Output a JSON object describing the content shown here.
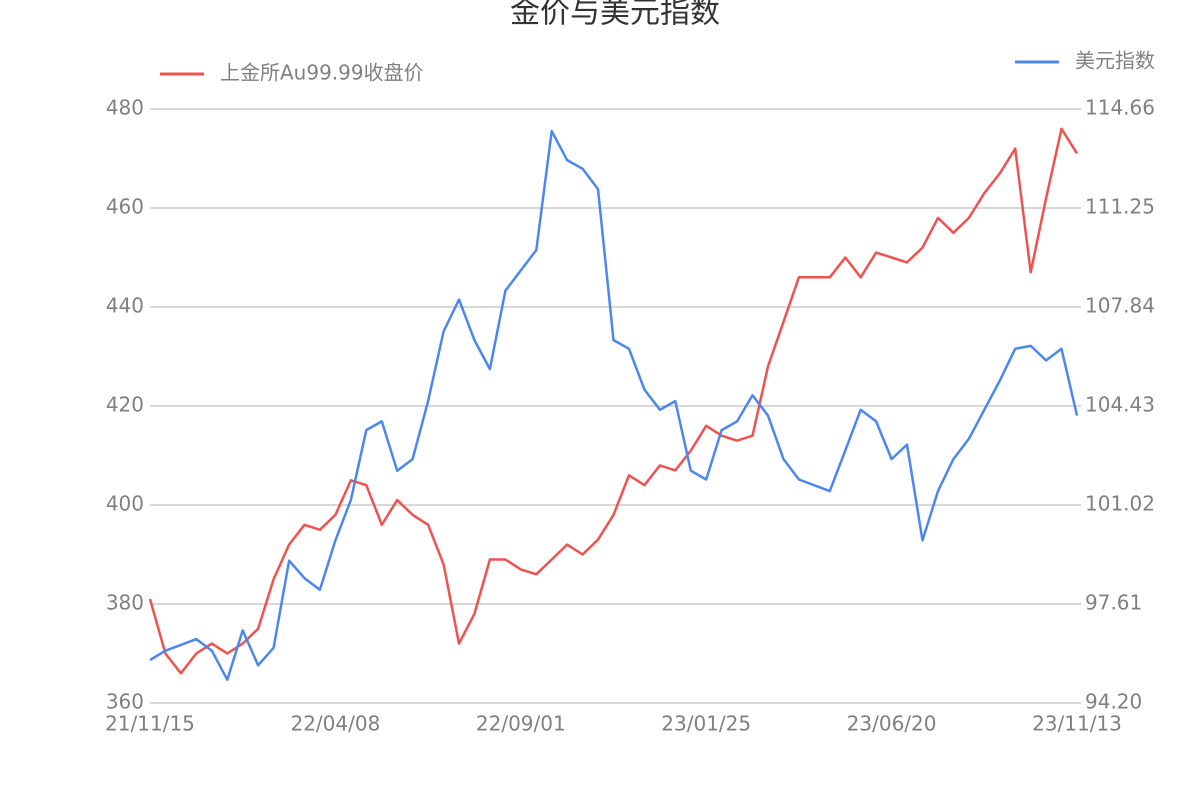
{
  "chart_data": {
    "type": "line",
    "title": "金价与美元指数",
    "categories": [
      "21/11/15",
      null,
      null,
      null,
      null,
      null,
      null,
      null,
      null,
      null,
      null,
      null,
      "22/04/08",
      null,
      null,
      null,
      null,
      null,
      null,
      null,
      null,
      null,
      null,
      null,
      "22/09/01",
      null,
      null,
      null,
      null,
      null,
      null,
      null,
      null,
      null,
      null,
      null,
      "23/01/25",
      null,
      null,
      null,
      null,
      null,
      null,
      null,
      null,
      null,
      null,
      null,
      "23/06/20",
      null,
      null,
      null,
      null,
      null,
      null,
      null,
      null,
      null,
      null,
      null,
      "23/11/13"
    ],
    "series": [
      {
        "name": "上金所Au99.99收盘价",
        "color": "#f0524f",
        "values": [
          381,
          370,
          366,
          370,
          372,
          370,
          372,
          375,
          385,
          392,
          396,
          395,
          398,
          405,
          404,
          396,
          401,
          398,
          396,
          388,
          372,
          378,
          389,
          389,
          387,
          386,
          389,
          392,
          390,
          393,
          398,
          406,
          404,
          408,
          407,
          411,
          416,
          414,
          413,
          414,
          428,
          437,
          446,
          446,
          446,
          450,
          446,
          451,
          450,
          449,
          452,
          458,
          455,
          458,
          463,
          467,
          472,
          447,
          462,
          476,
          471
        ]
      },
      {
        "name": "美元指数",
        "color": "#4c87f0",
        "axis": "y2",
        "values": [
          95.68,
          96.0,
          96.2,
          96.4,
          96.0,
          95.0,
          96.7,
          95.5,
          96.1,
          99.1,
          98.5,
          98.1,
          99.8,
          101.2,
          103.6,
          103.9,
          102.2,
          102.6,
          104.6,
          107.0,
          108.1,
          106.7,
          105.7,
          108.4,
          109.1,
          109.8,
          113.9,
          112.9,
          112.6,
          111.9,
          106.7,
          106.4,
          105.0,
          104.3,
          104.6,
          102.2,
          101.9,
          103.6,
          103.9,
          104.8,
          104.1,
          102.6,
          101.9,
          101.7,
          101.5,
          102.9,
          104.3,
          103.9,
          102.6,
          103.1,
          99.8,
          101.5,
          102.6,
          103.3,
          104.3,
          105.3,
          106.4,
          106.5,
          106.0,
          106.4,
          104.1
        ]
      }
    ],
    "ylim": [
      360,
      480
    ],
    "yticks": [
      360,
      380,
      400,
      420,
      440,
      460,
      480
    ],
    "y2lim": [
      94.2,
      114.66
    ],
    "y2ticks": [
      {
        "value": 94.2,
        "label": "94.20"
      },
      97.61,
      101.02,
      104.43,
      107.84,
      111.25,
      114.66
    ],
    "grid": true,
    "legend": "top"
  }
}
